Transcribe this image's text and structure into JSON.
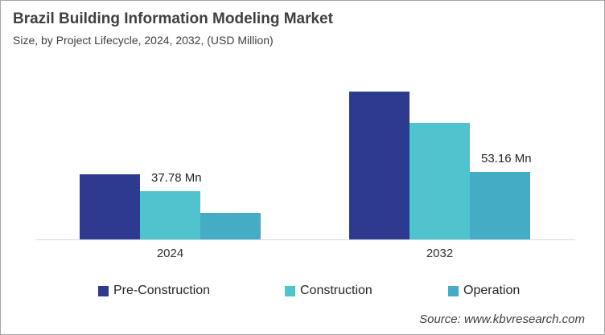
{
  "header": {
    "title": "Brazil Building Information Modeling Market",
    "subtitle": "Size, by Project Lifecycle, 2024, 2032, (USD Million)"
  },
  "source": "Source: www.kbvresearch.com",
  "colors": {
    "pre_construction": "#2C3A90",
    "construction": "#4FC3CE",
    "operation": "#45ACC6",
    "axis_line": "#D9D9D9",
    "heading_text": "#404040",
    "label_text": "#262626"
  },
  "chart_data": {
    "type": "bar",
    "title": "Brazil Building Information Modeling Market",
    "subtitle": "Size, by Project Lifecycle, 2024, 2032, (USD Million)",
    "units": "USD Million",
    "categories": [
      "2024",
      "2032"
    ],
    "series": [
      {
        "name": "Pre-Construction",
        "color": "#2C3A90",
        "values": [
          51.3,
          116.5
        ]
      },
      {
        "name": "Construction",
        "color": "#4FC3CE",
        "values": [
          37.78,
          91.8
        ]
      },
      {
        "name": "Operation",
        "color": "#45ACC6",
        "values": [
          20.9,
          53.16
        ]
      }
    ],
    "data_labels": [
      {
        "category": "2024",
        "series": "Construction",
        "text": "37.78 Mn"
      },
      {
        "category": "2032",
        "series": "Operation",
        "text": "53.16 Mn"
      }
    ],
    "xlabel": "",
    "ylabel": "",
    "ylim": [
      0,
      131
    ],
    "grid": false,
    "y_axis_visible": false,
    "legend_position": "bottom"
  },
  "legend": {
    "items": [
      {
        "label": "Pre-Construction",
        "color": "#2C3A90"
      },
      {
        "label": "Construction",
        "color": "#4FC3CE"
      },
      {
        "label": "Operation",
        "color": "#45ACC6"
      }
    ]
  }
}
